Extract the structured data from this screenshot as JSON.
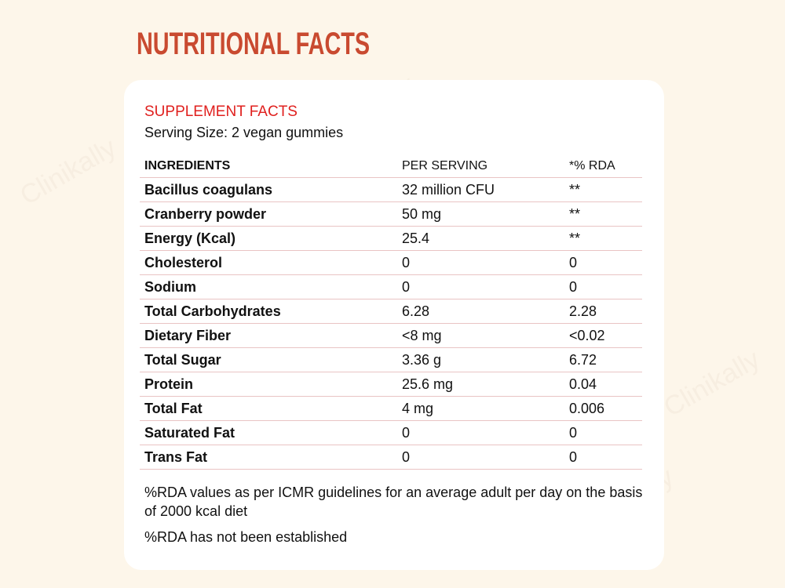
{
  "watermark": "Clinikally",
  "title": "NUTRITIONAL FACTS",
  "card": {
    "heading": "SUPPLEMENT FACTS",
    "serving_size": "Serving Size: 2 vegan gummies",
    "columns": [
      "INGREDIENTS",
      "PER SERVING",
      "*% RDA"
    ],
    "rows": [
      [
        "Bacillus coagulans",
        "32 million CFU",
        "**"
      ],
      [
        "Cranberry powder",
        "50 mg",
        "**"
      ],
      [
        "Energy (Kcal)",
        "25.4",
        "**"
      ],
      [
        "Cholesterol",
        "0",
        "0"
      ],
      [
        "Sodium",
        "0",
        "0"
      ],
      [
        "Total Carbohydrates",
        "6.28",
        "2.28"
      ],
      [
        "Dietary Fiber",
        "<8 mg",
        "<0.02"
      ],
      [
        "Total Sugar",
        "3.36 g",
        "6.72"
      ],
      [
        "Protein",
        "25.6 mg",
        "0.04"
      ],
      [
        "Total Fat",
        "4 mg",
        "0.006"
      ],
      [
        "Saturated Fat",
        "0",
        "0"
      ],
      [
        "Trans Fat",
        "0",
        "0"
      ]
    ],
    "notes": [
      "%RDA values as per ICMR guidelines for an average adult per day on the basis of 2000 kcal diet",
      "%RDA has not been established"
    ]
  }
}
